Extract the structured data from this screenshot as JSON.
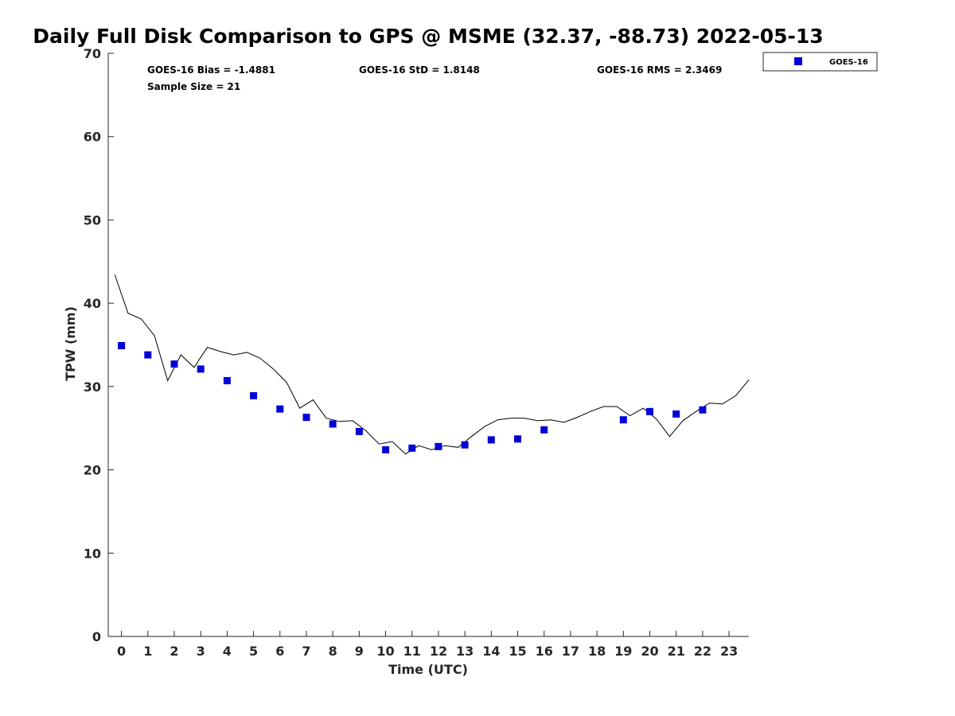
{
  "chart_data": {
    "type": "scatter",
    "title": "Daily Full Disk Comparison to GPS @ MSME (32.37, -88.73) 2022-05-13",
    "xlabel": "Time (UTC)",
    "ylabel": "TPW (mm)",
    "xlim": [
      -0.5,
      23.75
    ],
    "ylim": [
      0,
      70
    ],
    "xticks": [
      "0",
      "1",
      "2",
      "3",
      "4",
      "5",
      "6",
      "7",
      "8",
      "9",
      "10",
      "11",
      "12",
      "13",
      "14",
      "15",
      "16",
      "17",
      "18",
      "19",
      "20",
      "21",
      "22",
      "23"
    ],
    "yticks": [
      "0",
      "10",
      "20",
      "30",
      "40",
      "50",
      "60",
      "70"
    ],
    "grid": false,
    "legend_position": "outside-top-right",
    "stats": {
      "bias": "GOES-16 Bias = -1.4881",
      "std": "GOES-16 StD = 1.8148",
      "rms": "GOES-16 RMS = 2.3469",
      "sample": "Sample Size = 21"
    },
    "series": [
      {
        "name": "GOES-16",
        "kind": "scatter",
        "color": "#0000d8",
        "marker": "square",
        "x": [
          0,
          1,
          2,
          3,
          4,
          5,
          6,
          7,
          8,
          9,
          10,
          11,
          12,
          13,
          14,
          15,
          16,
          19,
          20,
          21,
          22
        ],
        "values": [
          34.9,
          33.8,
          32.7,
          32.1,
          30.7,
          28.9,
          27.3,
          26.3,
          25.5,
          24.6,
          22.4,
          22.6,
          22.8,
          23.0,
          23.6,
          23.7,
          24.8,
          26.0,
          27.0,
          26.7,
          27.2
        ]
      },
      {
        "kind": "line",
        "color": "#000000",
        "x": [
          -0.25,
          0.25,
          0.75,
          1.25,
          1.75,
          2.25,
          2.75,
          3.25,
          3.75,
          4.25,
          4.75,
          5.25,
          5.75,
          6.25,
          6.75,
          7.25,
          7.75,
          8.25,
          8.75,
          9.25,
          9.75,
          10.25,
          10.75,
          11.25,
          11.75,
          12.25,
          12.75,
          13.25,
          13.75,
          14.25,
          14.75,
          15.25,
          15.75,
          16.25,
          16.75,
          17.25,
          17.75,
          18.25,
          18.75,
          19.25,
          19.75,
          20.25,
          20.75,
          21.25,
          21.75,
          22.25,
          22.75,
          23.25,
          23.75
        ],
        "values": [
          43.4,
          38.8,
          38.1,
          36.1,
          30.7,
          33.8,
          32.3,
          34.7,
          34.2,
          33.8,
          34.1,
          33.4,
          32.1,
          30.5,
          27.4,
          28.4,
          26.2,
          25.8,
          25.9,
          24.7,
          23.1,
          23.4,
          21.9,
          22.9,
          22.4,
          22.9,
          22.7,
          24.0,
          25.2,
          26.0,
          26.2,
          26.2,
          25.9,
          26.0,
          25.7,
          26.3,
          27.0,
          27.6,
          27.6,
          26.5,
          27.4,
          26.1,
          24.0,
          25.9,
          27.0,
          28.0,
          27.9,
          28.9,
          30.8
        ]
      }
    ]
  }
}
